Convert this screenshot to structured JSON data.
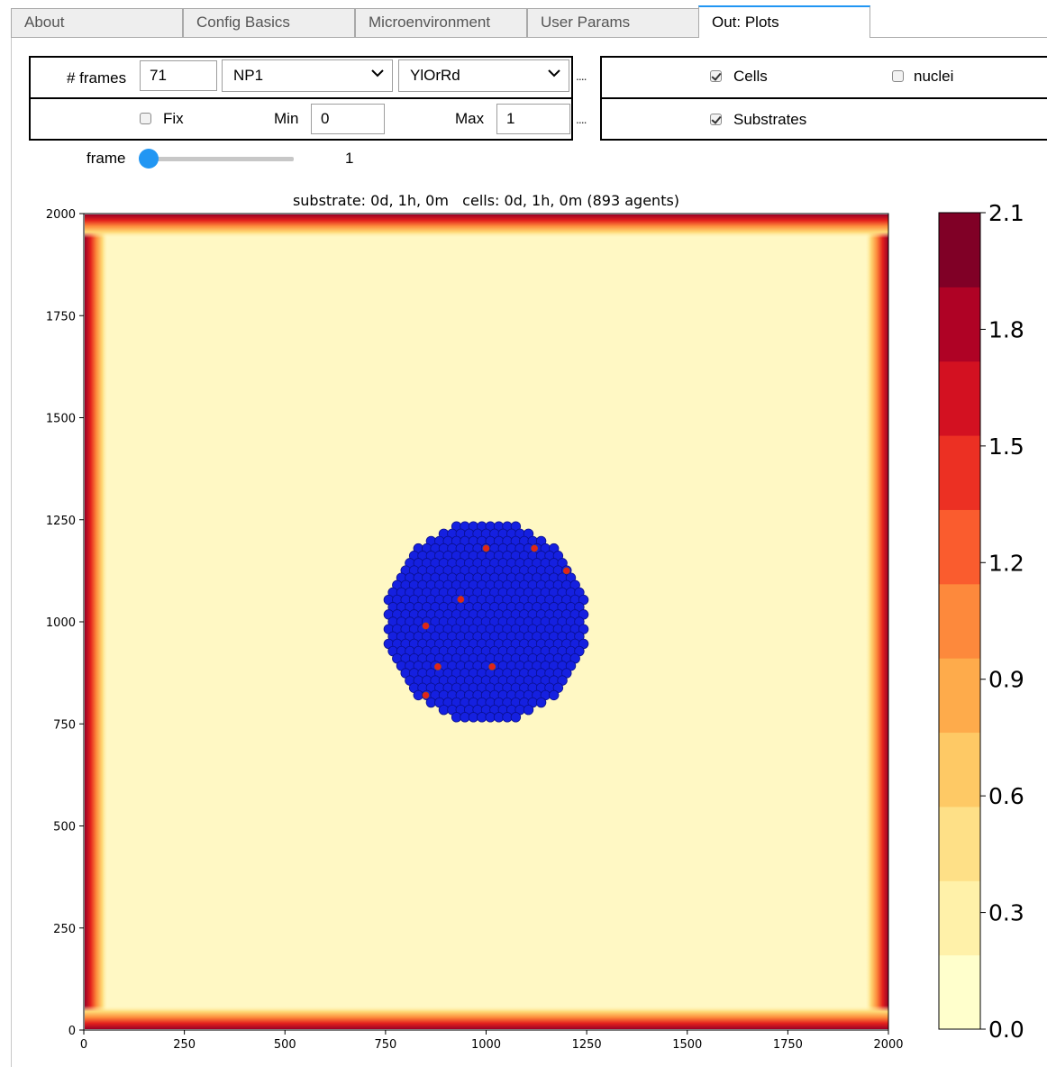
{
  "tabs": [
    {
      "label": "About",
      "active": false
    },
    {
      "label": "Config Basics",
      "active": false
    },
    {
      "label": "Microenvironment",
      "active": false
    },
    {
      "label": "User Params",
      "active": false
    },
    {
      "label": "Out: Plots",
      "active": true
    }
  ],
  "controls": {
    "frames_label": "# frames",
    "frames_value": "71",
    "substrate_select": "NP1",
    "colormap_select": "YlOrRd",
    "dots": "....",
    "fix_label": "Fix",
    "fix_checked": false,
    "min_label": "Min",
    "min_value": "0",
    "max_label": "Max",
    "max_value": "1",
    "cells_label": "Cells",
    "cells_checked": true,
    "nuclei_label": "nuclei",
    "nuclei_checked": false,
    "substrates_label": "Substrates",
    "substrates_checked": true
  },
  "slider": {
    "label": "frame",
    "value": "1"
  },
  "plot": {
    "title": "substrate: 0d, 1h, 0m   cells: 0d, 1h, 0m (893 agents)",
    "x_ticks": [
      "0",
      "250",
      "500",
      "750",
      "1000",
      "1250",
      "1500",
      "1750",
      "2000"
    ],
    "y_ticks": [
      "0",
      "250",
      "500",
      "750",
      "1000",
      "1250",
      "1500",
      "1750",
      "2000"
    ],
    "colorbar_ticks": [
      "0.0",
      "0.3",
      "0.6",
      "0.9",
      "1.2",
      "1.5",
      "1.8",
      "2.1"
    ],
    "colorbar_colors": [
      "#ffffcc",
      "#fff1a9",
      "#fee087",
      "#fec965",
      "#feab4b",
      "#fd893c",
      "#fa5c2e",
      "#ec3023",
      "#d31121",
      "#af0225",
      "#800026"
    ],
    "cell_color": "#1520e0",
    "cell_highlight_color": "#e3231a",
    "field_background": "#fff8c4",
    "field_edge": "#bd0026"
  },
  "chart_data": {
    "type": "heatmap",
    "title": "substrate: 0d, 1h, 0m   cells: 0d, 1h, 0m (893 agents)",
    "xlim": [
      0,
      2000
    ],
    "ylim": [
      0,
      2000
    ],
    "colormap": "YlOrRd",
    "color_range": [
      0.0,
      2.1
    ],
    "cell_cluster": {
      "center_x": 1000,
      "center_y": 1000,
      "radius": 250,
      "agents": 893
    }
  }
}
